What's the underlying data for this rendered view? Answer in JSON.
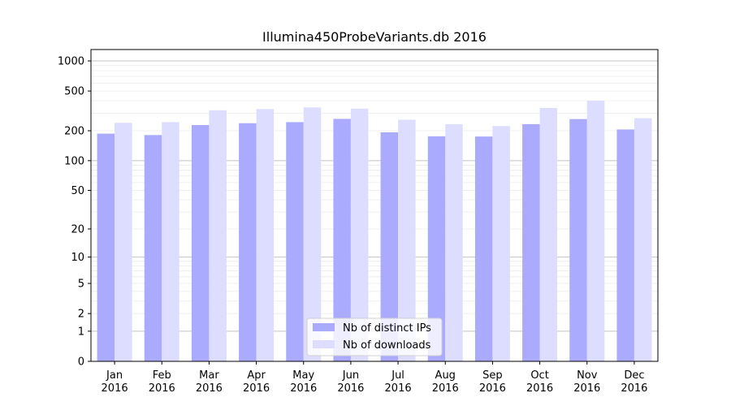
{
  "chart_data": {
    "type": "bar",
    "title": "Illumina450ProbeVariants.db 2016",
    "xlabel": "",
    "ylabel": "",
    "y_scale": "log(1+y)",
    "ylim": [
      0,
      1300
    ],
    "y_ticks": [
      0,
      1,
      2,
      5,
      10,
      20,
      50,
      100,
      200,
      500,
      1000
    ],
    "grid": true,
    "legend_position": "bottom-center",
    "categories": [
      [
        "Jan",
        "2016"
      ],
      [
        "Feb",
        "2016"
      ],
      [
        "Mar",
        "2016"
      ],
      [
        "Apr",
        "2016"
      ],
      [
        "May",
        "2016"
      ],
      [
        "Jun",
        "2016"
      ],
      [
        "Jul",
        "2016"
      ],
      [
        "Aug",
        "2016"
      ],
      [
        "Sep",
        "2016"
      ],
      [
        "Oct",
        "2016"
      ],
      [
        "Nov",
        "2016"
      ],
      [
        "Dec",
        "2016"
      ]
    ],
    "series": [
      {
        "name": "Nb of distinct IPs",
        "color": "#aaaaff",
        "values": [
          187,
          181,
          228,
          238,
          244,
          263,
          193,
          176,
          175,
          233,
          262,
          206
        ]
      },
      {
        "name": "Nb of downloads",
        "color": "#ddddff",
        "values": [
          240,
          244,
          321,
          330,
          343,
          333,
          258,
          233,
          223,
          338,
          401,
          267
        ]
      }
    ]
  }
}
